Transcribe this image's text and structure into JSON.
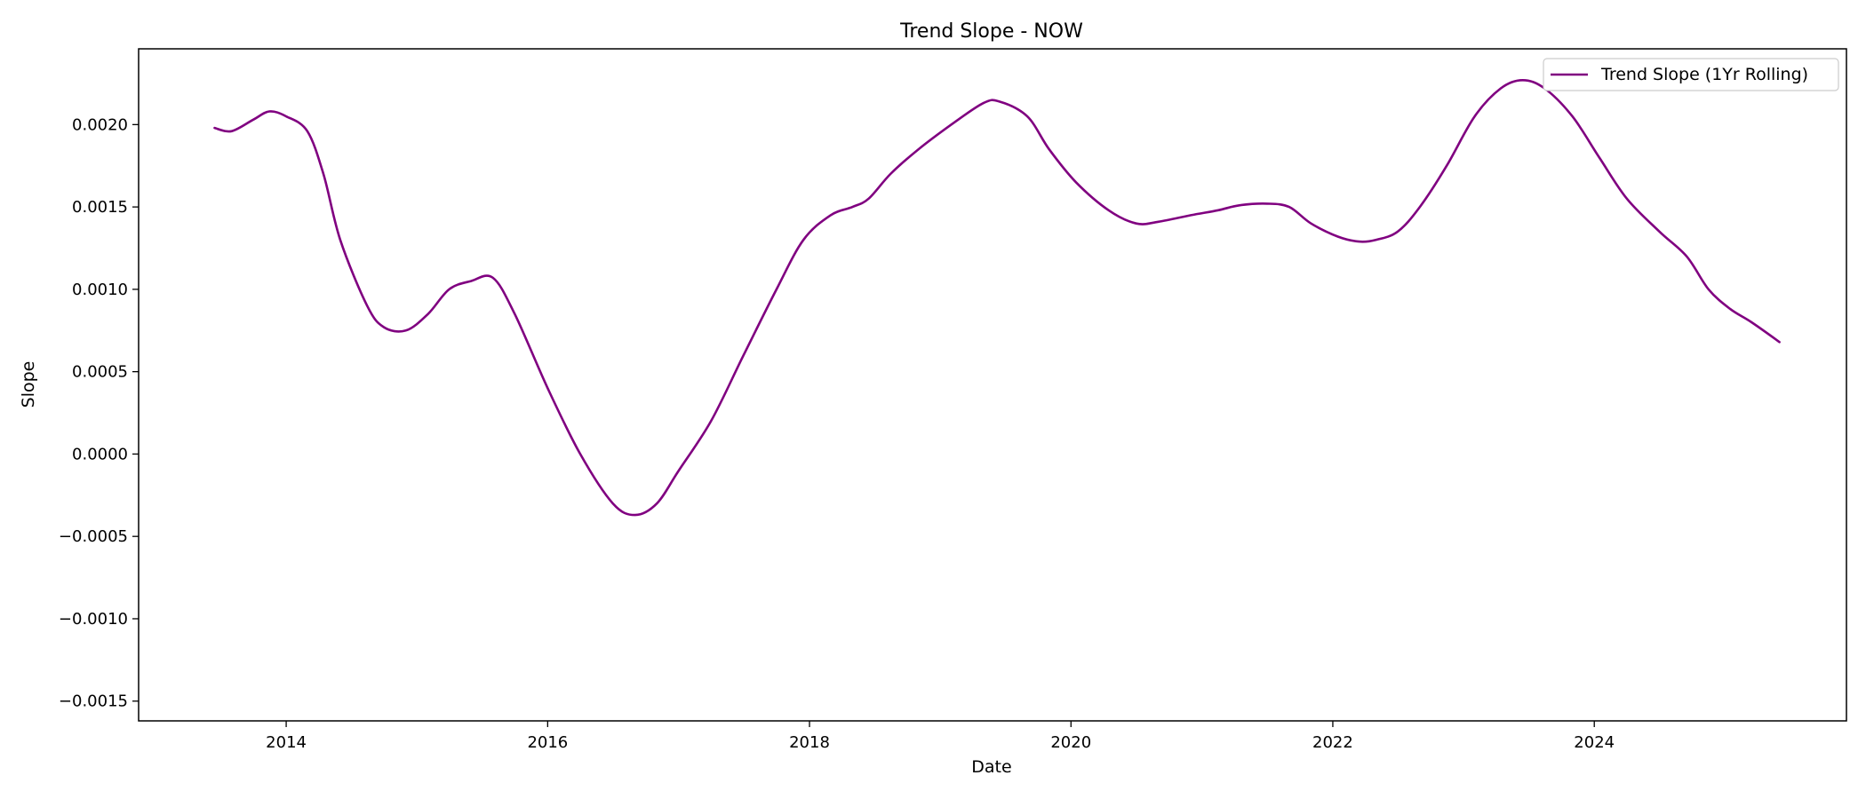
{
  "chart_data": {
    "type": "line",
    "title": "Trend Slope - NOW",
    "xlabel": "Date",
    "ylabel": "Slope",
    "xlim": [
      "2012-11-15",
      "2025-12-05"
    ],
    "ylim": [
      -0.00162,
      0.00246
    ],
    "x_ticks": [
      {
        "date": "2014-01-01",
        "label": "2014"
      },
      {
        "date": "2016-01-01",
        "label": "2016"
      },
      {
        "date": "2018-01-01",
        "label": "2018"
      },
      {
        "date": "2020-01-01",
        "label": "2020"
      },
      {
        "date": "2022-01-01",
        "label": "2022"
      },
      {
        "date": "2024-01-01",
        "label": "2024"
      }
    ],
    "y_ticks": [
      {
        "value": 0.002,
        "label": "0.0020"
      },
      {
        "value": 0.0015,
        "label": "0.0015"
      },
      {
        "value": 0.001,
        "label": "0.0010"
      },
      {
        "value": 0.0005,
        "label": "0.0005"
      },
      {
        "value": 0.0,
        "label": "0.0000"
      },
      {
        "value": -0.0005,
        "label": "−0.0005"
      },
      {
        "value": -0.001,
        "label": "−0.0010"
      },
      {
        "value": -0.0015,
        "label": "−0.0015"
      }
    ],
    "grid": false,
    "legend": "top-right",
    "series": [
      {
        "name": "Trend Slope (1Yr Rolling)",
        "color": "#800080",
        "points": [
          [
            "2013-06-15",
            0.00198
          ],
          [
            "2013-08-01",
            0.00196
          ],
          [
            "2013-10-01",
            0.00203
          ],
          [
            "2013-11-15",
            0.00208
          ],
          [
            "2014-01-01",
            0.00205
          ],
          [
            "2014-03-01",
            0.00196
          ],
          [
            "2014-04-15",
            0.0017
          ],
          [
            "2014-06-01",
            0.0013
          ],
          [
            "2014-08-15",
            0.0009
          ],
          [
            "2014-10-01",
            0.00077
          ],
          [
            "2014-12-01",
            0.00075
          ],
          [
            "2015-02-01",
            0.00085
          ],
          [
            "2015-04-01",
            0.001
          ],
          [
            "2015-06-01",
            0.00105
          ],
          [
            "2015-08-01",
            0.00107
          ],
          [
            "2015-10-01",
            0.00085
          ],
          [
            "2016-01-01",
            0.0004
          ],
          [
            "2016-04-01",
            0.0
          ],
          [
            "2016-07-01",
            -0.0003
          ],
          [
            "2016-09-01",
            -0.00037
          ],
          [
            "2016-11-01",
            -0.0003
          ],
          [
            "2017-01-01",
            -0.0001
          ],
          [
            "2017-04-01",
            0.0002
          ],
          [
            "2017-07-01",
            0.0006
          ],
          [
            "2017-10-01",
            0.001
          ],
          [
            "2017-12-15",
            0.0013
          ],
          [
            "2018-03-01",
            0.00145
          ],
          [
            "2018-05-01",
            0.0015
          ],
          [
            "2018-06-15",
            0.00155
          ],
          [
            "2018-08-15",
            0.0017
          ],
          [
            "2018-11-01",
            0.00185
          ],
          [
            "2019-02-01",
            0.002
          ],
          [
            "2019-05-01",
            0.00213
          ],
          [
            "2019-06-15",
            0.00214
          ],
          [
            "2019-09-01",
            0.00205
          ],
          [
            "2019-11-01",
            0.00185
          ],
          [
            "2020-01-15",
            0.00165
          ],
          [
            "2020-04-15",
            0.00148
          ],
          [
            "2020-07-01",
            0.0014
          ],
          [
            "2020-09-01",
            0.00141
          ],
          [
            "2020-12-01",
            0.00145
          ],
          [
            "2021-02-15",
            0.00148
          ],
          [
            "2021-04-15",
            0.00151
          ],
          [
            "2021-07-01",
            0.00152
          ],
          [
            "2021-09-01",
            0.0015
          ],
          [
            "2021-11-01",
            0.0014
          ],
          [
            "2022-01-15",
            0.00132
          ],
          [
            "2022-03-15",
            0.00129
          ],
          [
            "2022-05-01",
            0.0013
          ],
          [
            "2022-07-01",
            0.00135
          ],
          [
            "2022-09-01",
            0.0015
          ],
          [
            "2022-11-15",
            0.00175
          ],
          [
            "2023-02-01",
            0.00205
          ],
          [
            "2023-04-15",
            0.00222
          ],
          [
            "2023-06-15",
            0.00227
          ],
          [
            "2023-08-15",
            0.00222
          ],
          [
            "2023-11-01",
            0.00205
          ],
          [
            "2024-01-15",
            0.0018
          ],
          [
            "2024-04-01",
            0.00155
          ],
          [
            "2024-07-01",
            0.00135
          ],
          [
            "2024-09-15",
            0.0012
          ],
          [
            "2024-11-15",
            0.001
          ],
          [
            "2025-01-15",
            0.00088
          ],
          [
            "2025-03-15",
            0.0008
          ],
          [
            "2025-06-01",
            0.00068
          ]
        ]
      }
    ]
  }
}
